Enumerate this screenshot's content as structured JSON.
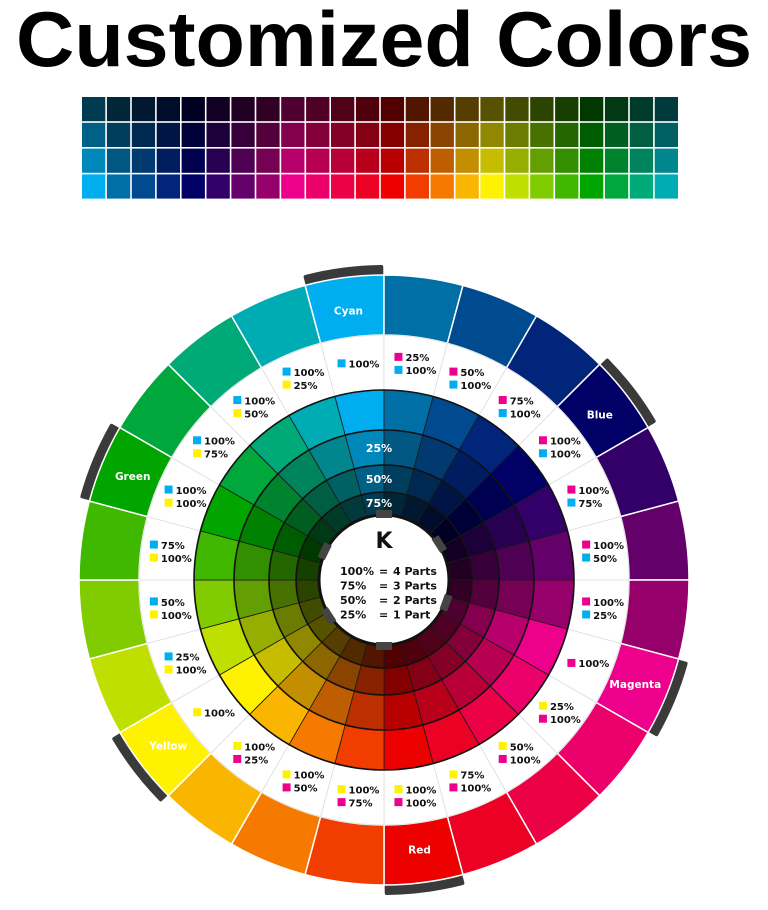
{
  "title": "Customized Colors",
  "inks": {
    "C": "#00aeef",
    "M": "#ec008c",
    "Y": "#fff200",
    "K": "#231f20"
  },
  "grid": {
    "rows_black_percent": [
      75,
      50,
      25,
      0
    ]
  },
  "wheel": {
    "segments": [
      {
        "name": "Cyan",
        "inks": [
          [
            "C",
            "100%"
          ]
        ],
        "c": 1,
        "m": 0,
        "y": 0
      },
      {
        "name": "",
        "inks": [
          [
            "M",
            "25%"
          ],
          [
            "C",
            "100%"
          ]
        ],
        "c": 1,
        "m": 0.25,
        "y": 0
      },
      {
        "name": "",
        "inks": [
          [
            "M",
            "50%"
          ],
          [
            "C",
            "100%"
          ]
        ],
        "c": 1,
        "m": 0.5,
        "y": 0
      },
      {
        "name": "",
        "inks": [
          [
            "M",
            "75%"
          ],
          [
            "C",
            "100%"
          ]
        ],
        "c": 1,
        "m": 0.75,
        "y": 0
      },
      {
        "name": "Blue",
        "inks": [
          [
            "M",
            "100%"
          ],
          [
            "C",
            "100%"
          ]
        ],
        "c": 1,
        "m": 1,
        "y": 0
      },
      {
        "name": "",
        "inks": [
          [
            "M",
            "100%"
          ],
          [
            "C",
            "75%"
          ]
        ],
        "c": 0.75,
        "m": 1,
        "y": 0
      },
      {
        "name": "",
        "inks": [
          [
            "M",
            "100%"
          ],
          [
            "C",
            "50%"
          ]
        ],
        "c": 0.5,
        "m": 1,
        "y": 0
      },
      {
        "name": "",
        "inks": [
          [
            "M",
            "100%"
          ],
          [
            "C",
            "25%"
          ]
        ],
        "c": 0.25,
        "m": 1,
        "y": 0
      },
      {
        "name": "Magenta",
        "inks": [
          [
            "M",
            "100%"
          ]
        ],
        "c": 0,
        "m": 1,
        "y": 0
      },
      {
        "name": "",
        "inks": [
          [
            "Y",
            "25%"
          ],
          [
            "M",
            "100%"
          ]
        ],
        "c": 0,
        "m": 1,
        "y": 0.25
      },
      {
        "name": "",
        "inks": [
          [
            "Y",
            "50%"
          ],
          [
            "M",
            "100%"
          ]
        ],
        "c": 0,
        "m": 1,
        "y": 0.5
      },
      {
        "name": "",
        "inks": [
          [
            "Y",
            "75%"
          ],
          [
            "M",
            "100%"
          ]
        ],
        "c": 0,
        "m": 1,
        "y": 0.75
      },
      {
        "name": "Red",
        "inks": [
          [
            "Y",
            "100%"
          ],
          [
            "M",
            "100%"
          ]
        ],
        "c": 0,
        "m": 1,
        "y": 1
      },
      {
        "name": "",
        "inks": [
          [
            "Y",
            "100%"
          ],
          [
            "M",
            "75%"
          ]
        ],
        "c": 0,
        "m": 0.75,
        "y": 1
      },
      {
        "name": "",
        "inks": [
          [
            "Y",
            "100%"
          ],
          [
            "M",
            "50%"
          ]
        ],
        "c": 0,
        "m": 0.5,
        "y": 1
      },
      {
        "name": "",
        "inks": [
          [
            "Y",
            "100%"
          ],
          [
            "M",
            "25%"
          ]
        ],
        "c": 0,
        "m": 0.25,
        "y": 1
      },
      {
        "name": "Yellow",
        "inks": [
          [
            "Y",
            "100%"
          ]
        ],
        "c": 0,
        "m": 0,
        "y": 1
      },
      {
        "name": "",
        "inks": [
          [
            "C",
            "25%"
          ],
          [
            "Y",
            "100%"
          ]
        ],
        "c": 0.25,
        "m": 0,
        "y": 1
      },
      {
        "name": "",
        "inks": [
          [
            "C",
            "50%"
          ],
          [
            "Y",
            "100%"
          ]
        ],
        "c": 0.5,
        "m": 0,
        "y": 1
      },
      {
        "name": "",
        "inks": [
          [
            "C",
            "75%"
          ],
          [
            "Y",
            "100%"
          ]
        ],
        "c": 0.75,
        "m": 0,
        "y": 1
      },
      {
        "name": "Green",
        "inks": [
          [
            "C",
            "100%"
          ],
          [
            "Y",
            "100%"
          ]
        ],
        "c": 1,
        "m": 0,
        "y": 1
      },
      {
        "name": "",
        "inks": [
          [
            "C",
            "100%"
          ],
          [
            "Y",
            "75%"
          ]
        ],
        "c": 1,
        "m": 0,
        "y": 0.75
      },
      {
        "name": "",
        "inks": [
          [
            "C",
            "100%"
          ],
          [
            "Y",
            "50%"
          ]
        ],
        "c": 1,
        "m": 0,
        "y": 0.5
      },
      {
        "name": "",
        "inks": [
          [
            "C",
            "100%"
          ],
          [
            "Y",
            "25%"
          ]
        ],
        "c": 1,
        "m": 0,
        "y": 0.25
      }
    ],
    "black_rings": [
      "25%",
      "50%",
      "75%"
    ],
    "center": {
      "heading": "K",
      "legend": [
        [
          "100%",
          "=",
          "4 Parts"
        ],
        [
          "75%",
          "=",
          "3 Parts"
        ],
        [
          "50%",
          "=",
          "2 Parts"
        ],
        [
          "25%",
          "=",
          "1 Part"
        ]
      ]
    }
  }
}
